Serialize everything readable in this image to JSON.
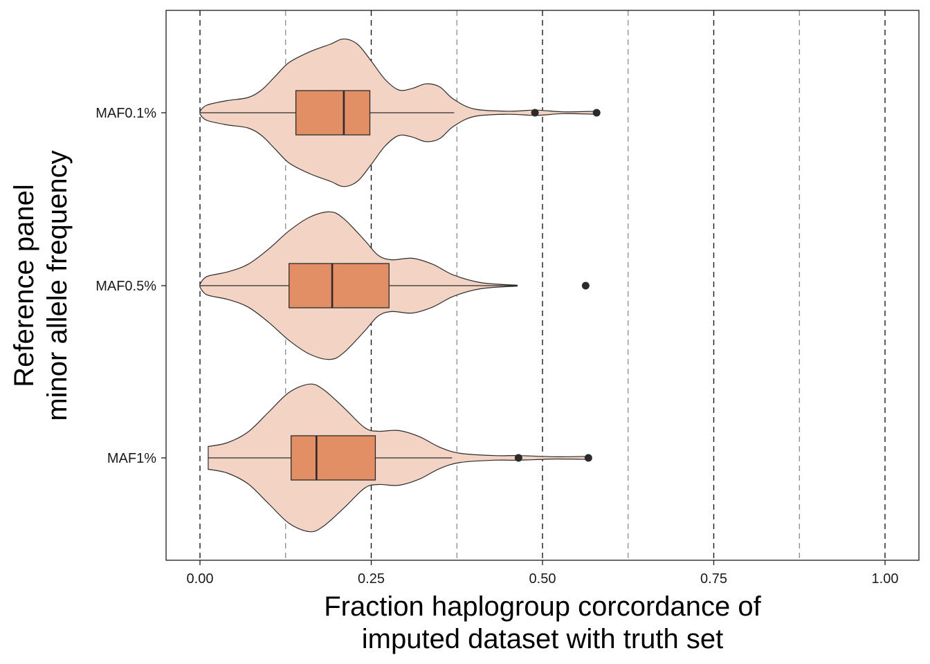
{
  "chart_data": {
    "type": "violin",
    "orientation": "horizontal",
    "xlabel": [
      "Fraction haplogroup corcordance of",
      "imputed dataset with truth set"
    ],
    "ylabel": [
      "Reference panel",
      "minor allele frequency"
    ],
    "xlim": [
      0,
      1
    ],
    "x_ticks": [
      0,
      0.25,
      0.5,
      0.75,
      1
    ],
    "x_tick_labels": [
      "0.00",
      "0.25",
      "0.50",
      "0.75",
      "1.00"
    ],
    "x_minor_lines": [
      0.125,
      0.375,
      0.625,
      0.875
    ],
    "grid": "dashed vertical lines at major and minor breaks",
    "categories": [
      "MAF0.1%",
      "MAF0.5%",
      "MAF1%"
    ],
    "colors": {
      "violin_fill": "#f3d3c4",
      "box_fill": "#e28f66",
      "outline": "#2b2b2b"
    },
    "series": [
      {
        "category": "MAF0.1%",
        "box": {
          "whisker_low": 0.0,
          "q1": 0.14,
          "median": 0.21,
          "q3": 0.248,
          "whisker_high": 0.371
        },
        "outliers": [
          0.489,
          0.579
        ],
        "density": [
          [
            0.0,
            0.02
          ],
          [
            0.01,
            0.1
          ],
          [
            0.04,
            0.16
          ],
          [
            0.07,
            0.2
          ],
          [
            0.09,
            0.3
          ],
          [
            0.11,
            0.48
          ],
          [
            0.13,
            0.66
          ],
          [
            0.16,
            0.8
          ],
          [
            0.19,
            0.9
          ],
          [
            0.21,
            0.97
          ],
          [
            0.23,
            0.9
          ],
          [
            0.25,
            0.68
          ],
          [
            0.27,
            0.44
          ],
          [
            0.29,
            0.3
          ],
          [
            0.31,
            0.32
          ],
          [
            0.33,
            0.38
          ],
          [
            0.35,
            0.34
          ],
          [
            0.37,
            0.18
          ],
          [
            0.4,
            0.05
          ],
          [
            0.45,
            0.02
          ],
          [
            0.49,
            0.035
          ],
          [
            0.53,
            0.012
          ],
          [
            0.579,
            0.02
          ]
        ]
      },
      {
        "category": "MAF0.5%",
        "box": {
          "whisker_low": 0.0,
          "q1": 0.13,
          "median": 0.193,
          "q3": 0.276,
          "whisker_high": 0.463
        },
        "outliers": [
          0.563
        ],
        "density": [
          [
            0.0,
            0.02
          ],
          [
            0.01,
            0.12
          ],
          [
            0.04,
            0.18
          ],
          [
            0.07,
            0.28
          ],
          [
            0.1,
            0.48
          ],
          [
            0.13,
            0.72
          ],
          [
            0.16,
            0.9
          ],
          [
            0.19,
            0.97
          ],
          [
            0.21,
            0.88
          ],
          [
            0.24,
            0.6
          ],
          [
            0.26,
            0.4
          ],
          [
            0.28,
            0.34
          ],
          [
            0.31,
            0.36
          ],
          [
            0.34,
            0.28
          ],
          [
            0.37,
            0.14
          ],
          [
            0.41,
            0.04
          ],
          [
            0.463,
            0.005
          ]
        ]
      },
      {
        "category": "MAF1%",
        "box": {
          "whisker_low": 0.012,
          "q1": 0.133,
          "median": 0.17,
          "q3": 0.256,
          "whisker_high": 0.368
        },
        "outliers": [
          0.465,
          0.567
        ],
        "density": [
          [
            0.012,
            0.15
          ],
          [
            0.04,
            0.2
          ],
          [
            0.07,
            0.34
          ],
          [
            0.1,
            0.6
          ],
          [
            0.13,
            0.86
          ],
          [
            0.16,
            0.97
          ],
          [
            0.18,
            0.9
          ],
          [
            0.21,
            0.66
          ],
          [
            0.24,
            0.4
          ],
          [
            0.26,
            0.35
          ],
          [
            0.29,
            0.36
          ],
          [
            0.32,
            0.28
          ],
          [
            0.35,
            0.14
          ],
          [
            0.38,
            0.06
          ],
          [
            0.43,
            0.03
          ],
          [
            0.465,
            0.03
          ],
          [
            0.52,
            0.015
          ],
          [
            0.567,
            0.02
          ]
        ]
      }
    ]
  }
}
